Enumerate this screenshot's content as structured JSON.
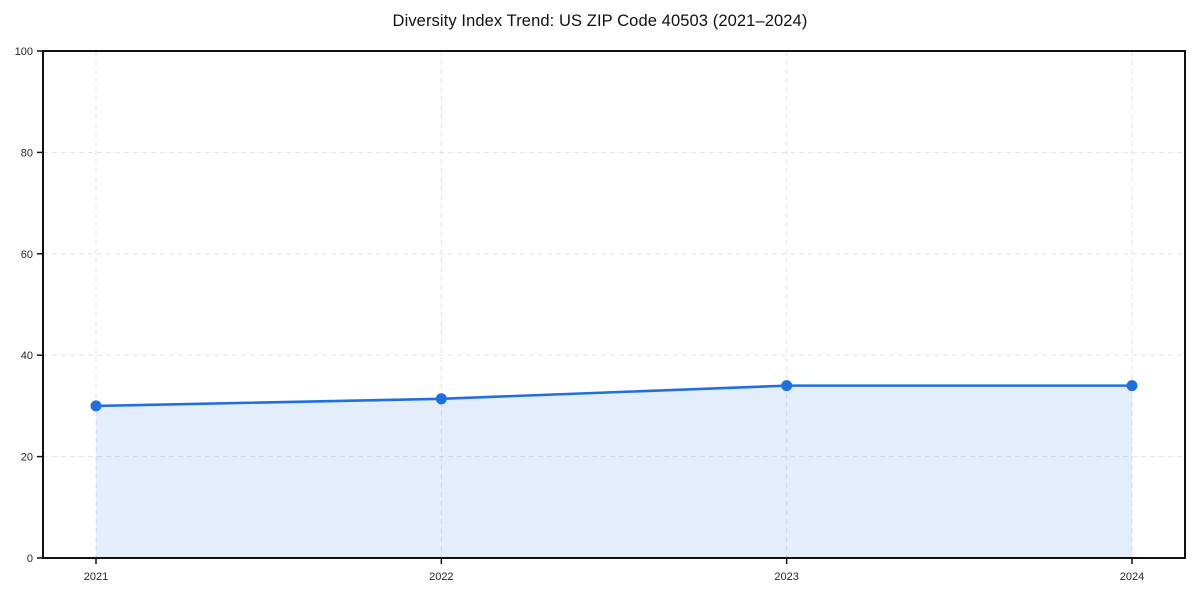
{
  "chart_data": {
    "type": "line",
    "title": "Diversity Index Trend: US ZIP Code 40503 (2021–2024)",
    "categories": [
      "2021",
      "2022",
      "2023",
      "2024"
    ],
    "series": [
      {
        "name": "Diversity Index",
        "values": [
          30,
          31.4,
          34,
          34
        ]
      }
    ],
    "xlabel": "",
    "ylabel": "",
    "ylim": [
      0,
      100
    ],
    "yticks": [
      0,
      20,
      40,
      60,
      80,
      100
    ],
    "grid": true,
    "grid_style": "dashed",
    "legend_position": "none",
    "area_fill": true,
    "marker": "circle"
  },
  "colors": {
    "line": "#1f6fe0",
    "marker": "#1f6fe0",
    "area_fill": "rgba(31,111,224,0.12)",
    "grid": "#e3e3e3",
    "spine": "#111111",
    "tick_text": "#262626",
    "background": "#ffffff"
  }
}
